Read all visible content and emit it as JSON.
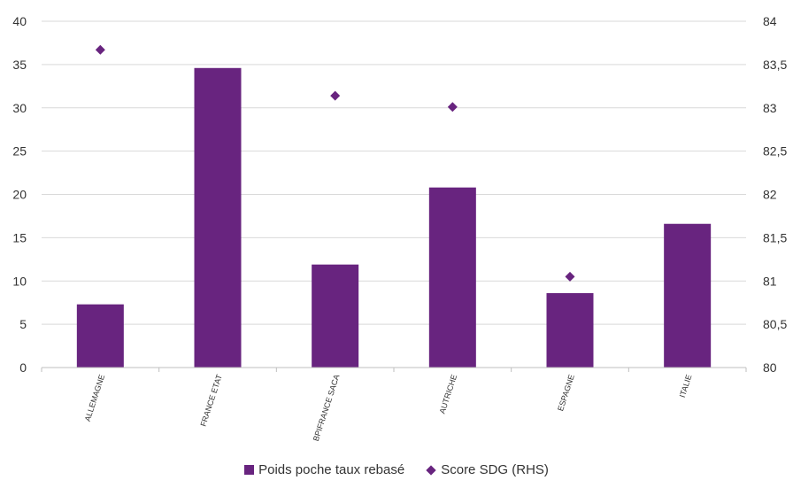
{
  "chart_data": {
    "type": "bar",
    "categories": [
      "ALLEMAGNE",
      "FRANCE ETAT",
      "BPIFRANCE SACA",
      "AUTRICHE",
      "ESPAGNE",
      "ITALIE"
    ],
    "series": [
      {
        "name": "Poids poche taux rebasé",
        "type": "bar",
        "axis": "left",
        "color": "#68247f",
        "values": [
          7.3,
          34.6,
          11.9,
          20.8,
          8.6,
          16.6
        ]
      },
      {
        "name": "Score SDG (RHS)",
        "type": "scatter",
        "axis": "right",
        "marker": "diamond",
        "color": "#68247f",
        "values": [
          83.67,
          null,
          83.14,
          83.01,
          81.05,
          null
        ]
      }
    ],
    "y_left": {
      "min": 0,
      "max": 40,
      "ticks": [
        "0",
        "5",
        "10",
        "15",
        "20",
        "25",
        "30",
        "35",
        "40"
      ]
    },
    "y_right": {
      "min": 80,
      "max": 84,
      "ticks": [
        "80",
        "80,5",
        "81",
        "81,5",
        "82",
        "82,5",
        "83",
        "83,5",
        "84"
      ]
    },
    "grid": true,
    "legend_position": "bottom"
  },
  "legend": {
    "bar_label": "Poids poche taux rebasé",
    "marker_label": "Score SDG (RHS)"
  }
}
